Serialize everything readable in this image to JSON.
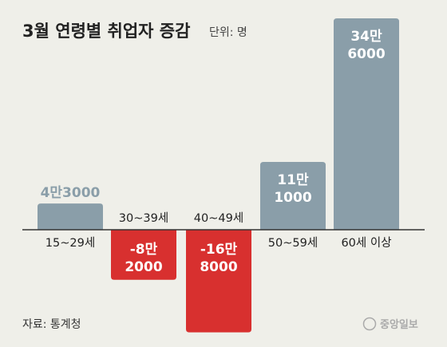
{
  "chart_data": {
    "type": "bar",
    "title": "3월 연령별 취업자 증감",
    "unit": "단위: 명",
    "categories": [
      "15~29세",
      "30~39세",
      "40~49세",
      "50~59세",
      "60세 이상"
    ],
    "values": [
      43000,
      -82000,
      -168000,
      111000,
      346000
    ],
    "value_labels": [
      [
        "4만3000"
      ],
      [
        "-8만",
        "2000"
      ],
      [
        "-16만",
        "8000"
      ],
      [
        "11만",
        "1000"
      ],
      [
        "34만",
        "6000"
      ]
    ],
    "ylim": [
      -168000,
      346000
    ],
    "grid": false,
    "legend": "none"
  },
  "source": "자료: 통계청",
  "brand": "중앙일보",
  "colors": {
    "background": "#efefe9",
    "positive": "#8a9ea9",
    "negative": "#d8302f",
    "positive_label_outside": "#8a9ea9",
    "label_inside": "#ffffff",
    "axis": "#333333"
  }
}
